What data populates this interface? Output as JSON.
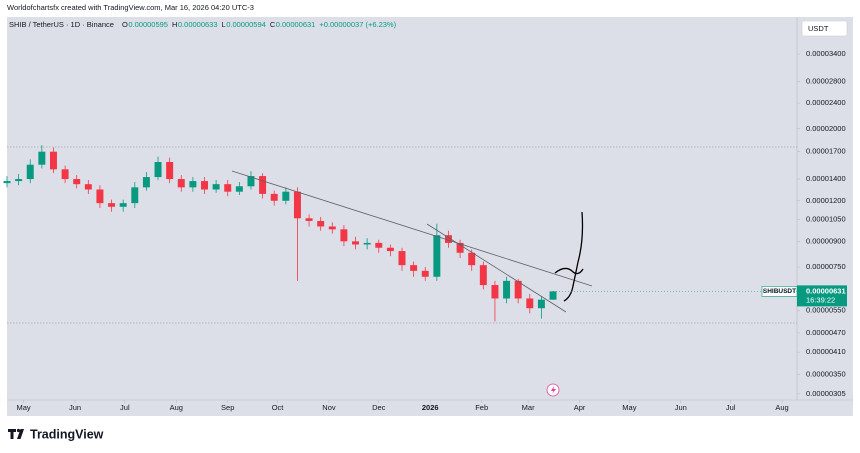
{
  "header": {
    "attribution": "Worldofchartsfx created with TradingView.com, Mar 16, 2026 04:20 UTC-3",
    "symbol": "SHIB / TetherUS · 1D · Binance",
    "ohlc": [
      {
        "label": "O",
        "value": "0.00000595"
      },
      {
        "label": "H",
        "value": "0.00000633"
      },
      {
        "label": "L",
        "value": "0.00000594"
      },
      {
        "label": "C",
        "value": "0.00000631"
      }
    ],
    "change": "+0.00000037 (+6.23%)"
  },
  "footer": {
    "brand": "TradingView"
  },
  "chart_data": {
    "type": "candlestick",
    "currency": "USDT",
    "log_scale": true,
    "up_color": "#089981",
    "down_color": "#f23645",
    "x": [
      -10,
      -3,
      4,
      11,
      18,
      25,
      32,
      39,
      46,
      53,
      60,
      67,
      74,
      81,
      88,
      95,
      102,
      109,
      116,
      123,
      130,
      137,
      144,
      151,
      158,
      165,
      172,
      179,
      186,
      193,
      200,
      207,
      214,
      221,
      228,
      235,
      242,
      249,
      256,
      263,
      270,
      277,
      284,
      291,
      298,
      305,
      312,
      319
    ],
    "open": [
      1.36e-05,
      1.38e-05,
      1.4e-05,
      1.55e-05,
      1.7e-05,
      1.5e-05,
      1.4e-05,
      1.35e-05,
      1.3e-05,
      1.18e-05,
      1.15e-05,
      1.18e-05,
      1.32e-05,
      1.42e-05,
      1.58e-05,
      1.4e-05,
      1.32e-05,
      1.38e-05,
      1.3e-05,
      1.35e-05,
      1.28e-05,
      1.33e-05,
      1.43e-05,
      1.26e-05,
      1.2e-05,
      1.28e-05,
      1.06e-05,
      1.04e-05,
      1e-05,
      9.8e-06,
      9e-06,
      8.8e-06,
      8.9e-06,
      8.6e-06,
      8.4e-06,
      7.6e-06,
      7.3e-06,
      7e-06,
      9.4e-06,
      8.9e-06,
      8.3e-06,
      7.6e-06,
      6.6e-06,
      6e-06,
      6.8e-06,
      6e-06,
      5.6e-06,
      5.95e-06
    ],
    "high": [
      1.43e-05,
      1.45e-05,
      1.61e-05,
      1.78e-05,
      1.75e-05,
      1.54e-05,
      1.44e-05,
      1.39e-05,
      1.34e-05,
      1.21e-05,
      1.21e-05,
      1.37e-05,
      1.47e-05,
      1.64e-05,
      1.63e-05,
      1.44e-05,
      1.42e-05,
      1.42e-05,
      1.39e-05,
      1.39e-05,
      1.37e-05,
      1.48e-05,
      1.46e-05,
      1.29e-05,
      1.32e-05,
      1.32e-05,
      1.09e-05,
      1.07e-05,
      1.03e-05,
      1.01e-05,
      9.3e-06,
      9.2e-06,
      9.1e-06,
      8.8e-06,
      8.6e-06,
      7.8e-06,
      7.5e-06,
      1.02e-05,
      9.7e-06,
      9.1e-06,
      8.5e-06,
      7.8e-06,
      6.8e-06,
      7e-06,
      6.9e-06,
      6.2e-06,
      6.1e-06,
      6.33e-06
    ],
    "low": [
      1.32e-05,
      1.34e-05,
      1.36e-05,
      1.51e-05,
      1.46e-05,
      1.36e-05,
      1.31e-05,
      1.26e-05,
      1.14e-05,
      1.11e-05,
      1.11e-05,
      1.14e-05,
      1.29e-05,
      1.39e-05,
      1.36e-05,
      1.28e-05,
      1.28e-05,
      1.26e-05,
      1.27e-05,
      1.24e-05,
      1.25e-05,
      1.3e-05,
      1.22e-05,
      1.16e-05,
      1.17e-05,
      6.8e-06,
      1e-05,
      9.7e-06,
      9.5e-06,
      8.7e-06,
      8.5e-06,
      8.5e-06,
      8.3e-06,
      8.1e-06,
      7.3e-06,
      7e-06,
      6.8e-06,
      6.8e-06,
      8.6e-06,
      8e-06,
      7.3e-06,
      6.4e-06,
      5.1e-06,
      5.8e-06,
      5.8e-06,
      5.4e-06,
      5.2e-06,
      5.94e-06
    ],
    "close": [
      1.38e-05,
      1.4e-05,
      1.55e-05,
      1.7e-05,
      1.5e-05,
      1.4e-05,
      1.35e-05,
      1.3e-05,
      1.18e-05,
      1.15e-05,
      1.18e-05,
      1.32e-05,
      1.42e-05,
      1.58e-05,
      1.4e-05,
      1.32e-05,
      1.38e-05,
      1.3e-05,
      1.35e-05,
      1.28e-05,
      1.33e-05,
      1.43e-05,
      1.26e-05,
      1.2e-05,
      1.28e-05,
      1.06e-05,
      1.04e-05,
      1e-05,
      9.8e-06,
      9e-06,
      8.8e-06,
      8.9e-06,
      8.6e-06,
      8.4e-06,
      7.6e-06,
      7.3e-06,
      7e-06,
      9.4e-06,
      8.9e-06,
      8.3e-06,
      7.6e-06,
      6.6e-06,
      6e-06,
      6.8e-06,
      6e-06,
      5.6e-06,
      5.95e-06,
      6.31e-06
    ],
    "xlim": [
      -10,
      466
    ],
    "xticks": [
      {
        "value": 0,
        "label": "May"
      },
      {
        "value": 31,
        "label": "Jun"
      },
      {
        "value": 61,
        "label": "Jul"
      },
      {
        "value": 92,
        "label": "Aug"
      },
      {
        "value": 123,
        "label": "Sep"
      },
      {
        "value": 153,
        "label": "Oct"
      },
      {
        "value": 184,
        "label": "Nov"
      },
      {
        "value": 214,
        "label": "Dec"
      },
      {
        "value": 245,
        "label": "2026"
      },
      {
        "value": 276,
        "label": "Feb"
      },
      {
        "value": 304,
        "label": "Mar"
      },
      {
        "value": 335,
        "label": "Apr"
      },
      {
        "value": 365,
        "label": "May"
      },
      {
        "value": 396,
        "label": "Jun"
      },
      {
        "value": 426,
        "label": "Jul"
      },
      {
        "value": 457,
        "label": "Aug"
      }
    ],
    "ylim": [
      2.92e-06,
      4.42e-05
    ],
    "yticks": [
      {
        "value": 3.4e-05,
        "label": "0.00003400"
      },
      {
        "value": 2.8e-05,
        "label": "0.00002800"
      },
      {
        "value": 2.4e-05,
        "label": "0.00002400"
      },
      {
        "value": 2e-05,
        "label": "0.00002000"
      },
      {
        "value": 1.7e-05,
        "label": "0.00001700"
      },
      {
        "value": 1.4e-05,
        "label": "0.00001400"
      },
      {
        "value": 1.2e-05,
        "label": "0.00001200"
      },
      {
        "value": 1.05e-05,
        "label": "0.00001050"
      },
      {
        "value": 9e-06,
        "label": "0.00000900"
      },
      {
        "value": 7.5e-06,
        "label": "0.00000750"
      },
      {
        "value": 5.5e-06,
        "label": "0.00000550"
      },
      {
        "value": 4.7e-06,
        "label": "0.00000470"
      },
      {
        "value": 4.1e-06,
        "label": "0.00000410"
      },
      {
        "value": 3.5e-06,
        "label": "0.00000350"
      },
      {
        "value": 3.05e-06,
        "label": "0.00000305"
      }
    ],
    "last_price": {
      "symbol": "SHIBUSDT",
      "value": 6.31e-06,
      "label": "0.00000631",
      "countdown": "16:39:22"
    }
  }
}
